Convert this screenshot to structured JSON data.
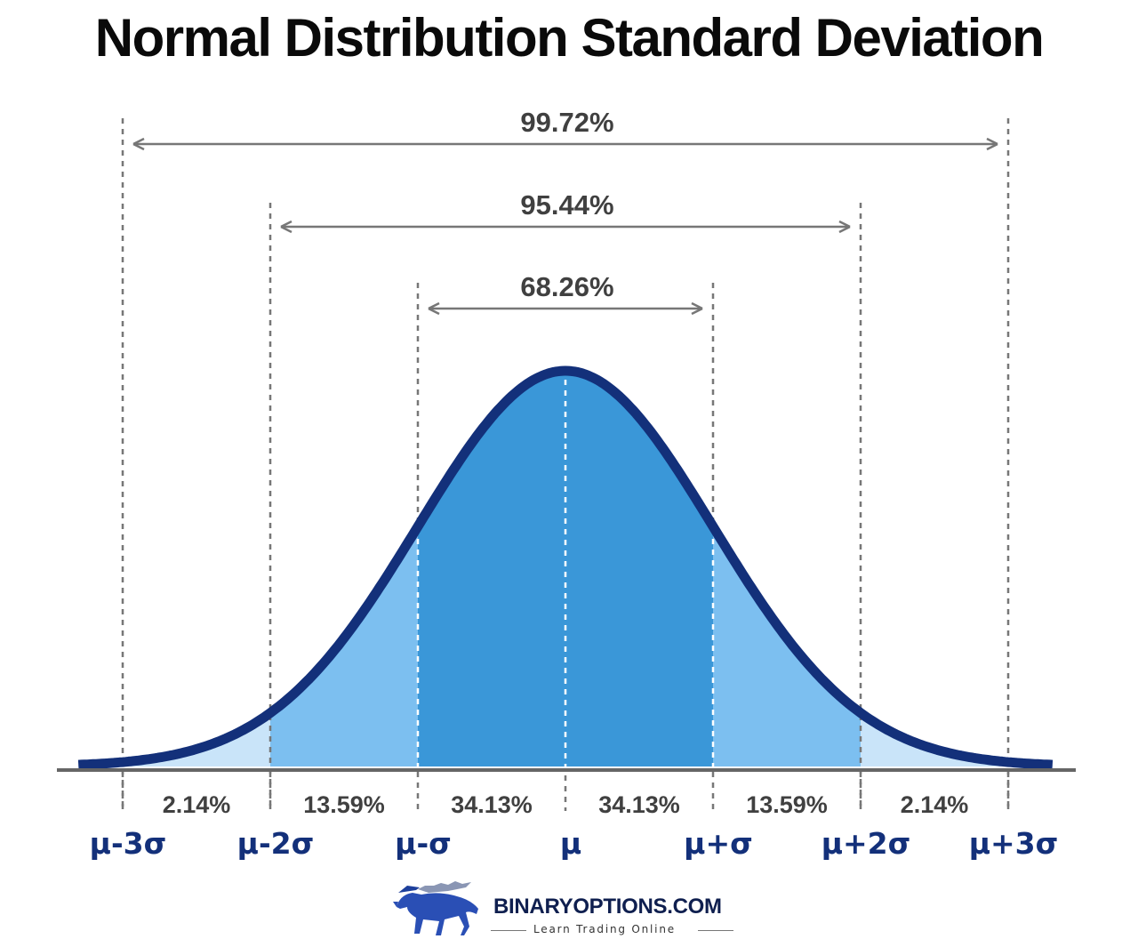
{
  "title": "Normal Distribution Standard Deviation",
  "chart_data": {
    "type": "area",
    "distribution": "normal",
    "x_tick_labels": [
      "μ-3σ",
      "μ-2σ",
      "μ-σ",
      "μ",
      "μ+σ",
      "μ+2σ",
      "μ+3σ"
    ],
    "x_sigma": [
      -3,
      -2,
      -1,
      0,
      1,
      2,
      3
    ],
    "xlim_sigma": [
      -3.3,
      3.3
    ],
    "segment_labels": [
      "2.14%",
      "13.59%",
      "34.13%",
      "34.13%",
      "13.59%",
      "2.14%"
    ],
    "segment_values": [
      2.14,
      13.59,
      34.13,
      34.13,
      13.59,
      2.14
    ],
    "range_annotations": [
      {
        "label": "99.72%",
        "from_sigma": -3,
        "to_sigma": 3,
        "value": 99.72
      },
      {
        "label": "95.44%",
        "from_sigma": -2,
        "to_sigma": 2,
        "value": 95.44
      },
      {
        "label": "68.26%",
        "from_sigma": -1,
        "to_sigma": 1,
        "value": 68.26
      }
    ],
    "colors": {
      "curve": "#13307a",
      "inner_fill": "#3a97d8",
      "middle_fill": "#7cbff0",
      "outer_fill": "#c9e4f9",
      "axis": "#666666",
      "guide": "#777777",
      "label": "#404040",
      "tick_label": "#13307a"
    }
  },
  "brand": {
    "name": "BINARYOPTIONS.COM",
    "tagline": "Learn Trading Online",
    "logo_icon": "bull-icon"
  }
}
